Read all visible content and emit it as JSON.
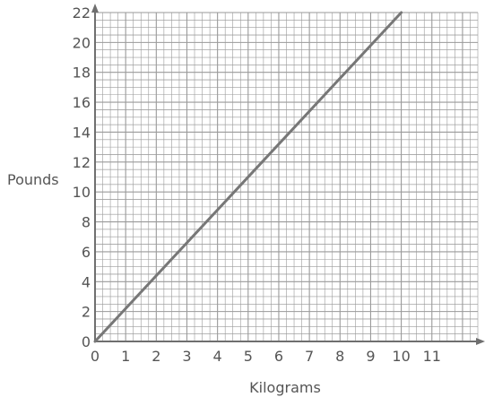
{
  "chart_data": {
    "type": "line",
    "xlabel": "Kilograms",
    "ylabel": "Pounds",
    "xlim": [
      0,
      12.5
    ],
    "ylim": [
      0,
      22
    ],
    "x_ticks": [
      0,
      1,
      2,
      3,
      4,
      5,
      6,
      7,
      8,
      9,
      10,
      11
    ],
    "y_ticks": [
      0,
      2,
      4,
      6,
      8,
      10,
      12,
      14,
      16,
      18,
      20,
      22
    ],
    "grid": true,
    "minor_grid_step": 0.25,
    "series": [
      {
        "x": [
          0,
          10
        ],
        "y": [
          0,
          22
        ],
        "color": "#777777"
      }
    ],
    "colors": {
      "grid": "#9a9a9a",
      "axis": "#6f6f6f",
      "line": "#777777",
      "text": "#555555"
    }
  }
}
